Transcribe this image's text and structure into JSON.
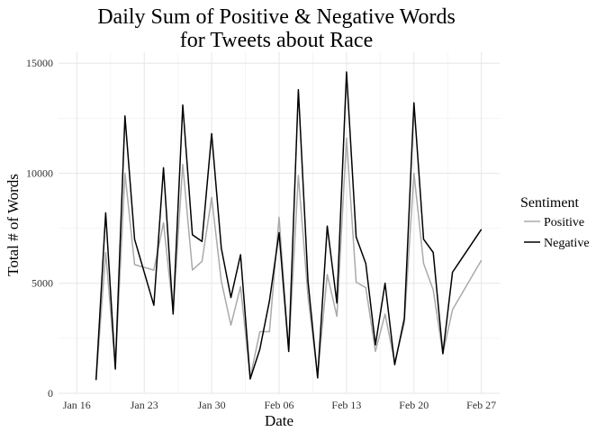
{
  "chart_data": {
    "type": "line",
    "title": [
      "Daily Sum of Positive & Negative Words",
      "for Tweets about Race"
    ],
    "xlabel": "Date",
    "ylabel": "Total # of Words",
    "x_ticks": [
      {
        "day": 0,
        "label": "Jan 16"
      },
      {
        "day": 7,
        "label": "Jan 23"
      },
      {
        "day": 14,
        "label": "Jan 30"
      },
      {
        "day": 21,
        "label": "Feb 06"
      },
      {
        "day": 28,
        "label": "Feb 13"
      },
      {
        "day": 35,
        "label": "Feb 20"
      },
      {
        "day": 42,
        "label": "Feb 27"
      }
    ],
    "x_range": [
      -1.9,
      43.9
    ],
    "y_ticks": [
      0,
      5000,
      10000,
      15000
    ],
    "ylim": [
      0,
      15500
    ],
    "legend": {
      "title": "Sentiment",
      "position": "right"
    },
    "series": [
      {
        "name": "Positive",
        "color": "#aaaaaa",
        "days": [
          2,
          3,
          4,
          5,
          6,
          8,
          9,
          10,
          11,
          12,
          13,
          14,
          15,
          16,
          17,
          18,
          19,
          20,
          21,
          22,
          23,
          24,
          25,
          26,
          27,
          28,
          29,
          30,
          31,
          32,
          33,
          34,
          35,
          36,
          37,
          38,
          39,
          42
        ],
        "values": [
          600,
          6400,
          1200,
          10000,
          5850,
          5600,
          7750,
          3700,
          10400,
          5600,
          6000,
          8900,
          5100,
          3100,
          4850,
          700,
          2800,
          2800,
          8000,
          1900,
          9900,
          4400,
          800,
          5400,
          3500,
          11600,
          5050,
          4800,
          1900,
          3600,
          1400,
          3200,
          10000,
          5900,
          4700,
          1800,
          3800,
          6050
        ]
      },
      {
        "name": "Negative",
        "color": "#000000",
        "days": [
          2,
          3,
          4,
          5,
          6,
          8,
          9,
          10,
          11,
          12,
          13,
          14,
          15,
          16,
          17,
          18,
          19,
          20,
          21,
          22,
          23,
          24,
          25,
          26,
          27,
          28,
          29,
          30,
          31,
          32,
          33,
          34,
          35,
          36,
          37,
          38,
          39,
          42
        ],
        "values": [
          600,
          8200,
          1100,
          12600,
          7000,
          4000,
          10250,
          3600,
          13100,
          7200,
          6900,
          11800,
          6600,
          4350,
          6300,
          650,
          2000,
          4200,
          7300,
          1900,
          13800,
          5100,
          700,
          7600,
          4100,
          14600,
          7100,
          5900,
          2200,
          5000,
          1300,
          3400,
          13200,
          7000,
          6400,
          1800,
          5500,
          7450
        ]
      }
    ]
  }
}
